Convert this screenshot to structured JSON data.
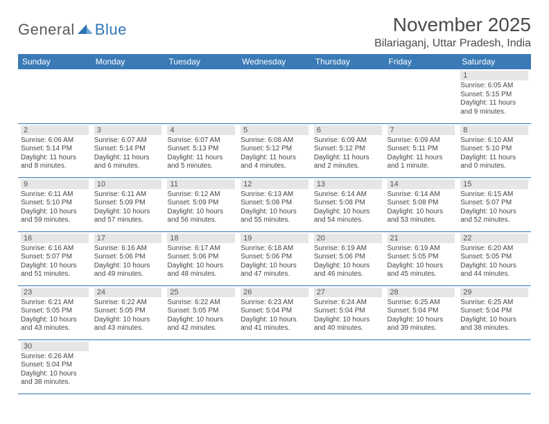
{
  "logo": {
    "general": "General",
    "blue": "Blue"
  },
  "title": "November 2025",
  "location": "Bilariaganj, Uttar Pradesh, India",
  "colors": {
    "header_bg": "#3a7ab6",
    "header_text": "#ffffff",
    "daynum_bg": "#e6e6e6",
    "border": "#2f74b5",
    "logo_blue": "#2f74b5"
  },
  "weekdays": [
    "Sunday",
    "Monday",
    "Tuesday",
    "Wednesday",
    "Thursday",
    "Friday",
    "Saturday"
  ],
  "weeks": [
    [
      null,
      null,
      null,
      null,
      null,
      null,
      {
        "n": "1",
        "rise": "Sunrise: 6:05 AM",
        "set": "Sunset: 5:15 PM",
        "day": "Daylight: 11 hours and 9 minutes."
      }
    ],
    [
      {
        "n": "2",
        "rise": "Sunrise: 6:06 AM",
        "set": "Sunset: 5:14 PM",
        "day": "Daylight: 11 hours and 8 minutes."
      },
      {
        "n": "3",
        "rise": "Sunrise: 6:07 AM",
        "set": "Sunset: 5:14 PM",
        "day": "Daylight: 11 hours and 6 minutes."
      },
      {
        "n": "4",
        "rise": "Sunrise: 6:07 AM",
        "set": "Sunset: 5:13 PM",
        "day": "Daylight: 11 hours and 5 minutes."
      },
      {
        "n": "5",
        "rise": "Sunrise: 6:08 AM",
        "set": "Sunset: 5:12 PM",
        "day": "Daylight: 11 hours and 4 minutes."
      },
      {
        "n": "6",
        "rise": "Sunrise: 6:09 AM",
        "set": "Sunset: 5:12 PM",
        "day": "Daylight: 11 hours and 2 minutes."
      },
      {
        "n": "7",
        "rise": "Sunrise: 6:09 AM",
        "set": "Sunset: 5:11 PM",
        "day": "Daylight: 11 hours and 1 minute."
      },
      {
        "n": "8",
        "rise": "Sunrise: 6:10 AM",
        "set": "Sunset: 5:10 PM",
        "day": "Daylight: 11 hours and 0 minutes."
      }
    ],
    [
      {
        "n": "9",
        "rise": "Sunrise: 6:11 AM",
        "set": "Sunset: 5:10 PM",
        "day": "Daylight: 10 hours and 59 minutes."
      },
      {
        "n": "10",
        "rise": "Sunrise: 6:11 AM",
        "set": "Sunset: 5:09 PM",
        "day": "Daylight: 10 hours and 57 minutes."
      },
      {
        "n": "11",
        "rise": "Sunrise: 6:12 AM",
        "set": "Sunset: 5:09 PM",
        "day": "Daylight: 10 hours and 56 minutes."
      },
      {
        "n": "12",
        "rise": "Sunrise: 6:13 AM",
        "set": "Sunset: 5:08 PM",
        "day": "Daylight: 10 hours and 55 minutes."
      },
      {
        "n": "13",
        "rise": "Sunrise: 6:14 AM",
        "set": "Sunset: 5:08 PM",
        "day": "Daylight: 10 hours and 54 minutes."
      },
      {
        "n": "14",
        "rise": "Sunrise: 6:14 AM",
        "set": "Sunset: 5:08 PM",
        "day": "Daylight: 10 hours and 53 minutes."
      },
      {
        "n": "15",
        "rise": "Sunrise: 6:15 AM",
        "set": "Sunset: 5:07 PM",
        "day": "Daylight: 10 hours and 52 minutes."
      }
    ],
    [
      {
        "n": "16",
        "rise": "Sunrise: 6:16 AM",
        "set": "Sunset: 5:07 PM",
        "day": "Daylight: 10 hours and 51 minutes."
      },
      {
        "n": "17",
        "rise": "Sunrise: 6:16 AM",
        "set": "Sunset: 5:06 PM",
        "day": "Daylight: 10 hours and 49 minutes."
      },
      {
        "n": "18",
        "rise": "Sunrise: 6:17 AM",
        "set": "Sunset: 5:06 PM",
        "day": "Daylight: 10 hours and 48 minutes."
      },
      {
        "n": "19",
        "rise": "Sunrise: 6:18 AM",
        "set": "Sunset: 5:06 PM",
        "day": "Daylight: 10 hours and 47 minutes."
      },
      {
        "n": "20",
        "rise": "Sunrise: 6:19 AM",
        "set": "Sunset: 5:06 PM",
        "day": "Daylight: 10 hours and 46 minutes."
      },
      {
        "n": "21",
        "rise": "Sunrise: 6:19 AM",
        "set": "Sunset: 5:05 PM",
        "day": "Daylight: 10 hours and 45 minutes."
      },
      {
        "n": "22",
        "rise": "Sunrise: 6:20 AM",
        "set": "Sunset: 5:05 PM",
        "day": "Daylight: 10 hours and 44 minutes."
      }
    ],
    [
      {
        "n": "23",
        "rise": "Sunrise: 6:21 AM",
        "set": "Sunset: 5:05 PM",
        "day": "Daylight: 10 hours and 43 minutes."
      },
      {
        "n": "24",
        "rise": "Sunrise: 6:22 AM",
        "set": "Sunset: 5:05 PM",
        "day": "Daylight: 10 hours and 43 minutes."
      },
      {
        "n": "25",
        "rise": "Sunrise: 6:22 AM",
        "set": "Sunset: 5:05 PM",
        "day": "Daylight: 10 hours and 42 minutes."
      },
      {
        "n": "26",
        "rise": "Sunrise: 6:23 AM",
        "set": "Sunset: 5:04 PM",
        "day": "Daylight: 10 hours and 41 minutes."
      },
      {
        "n": "27",
        "rise": "Sunrise: 6:24 AM",
        "set": "Sunset: 5:04 PM",
        "day": "Daylight: 10 hours and 40 minutes."
      },
      {
        "n": "28",
        "rise": "Sunrise: 6:25 AM",
        "set": "Sunset: 5:04 PM",
        "day": "Daylight: 10 hours and 39 minutes."
      },
      {
        "n": "29",
        "rise": "Sunrise: 6:25 AM",
        "set": "Sunset: 5:04 PM",
        "day": "Daylight: 10 hours and 38 minutes."
      }
    ],
    [
      {
        "n": "30",
        "rise": "Sunrise: 6:26 AM",
        "set": "Sunset: 5:04 PM",
        "day": "Daylight: 10 hours and 38 minutes."
      },
      null,
      null,
      null,
      null,
      null,
      null
    ]
  ]
}
